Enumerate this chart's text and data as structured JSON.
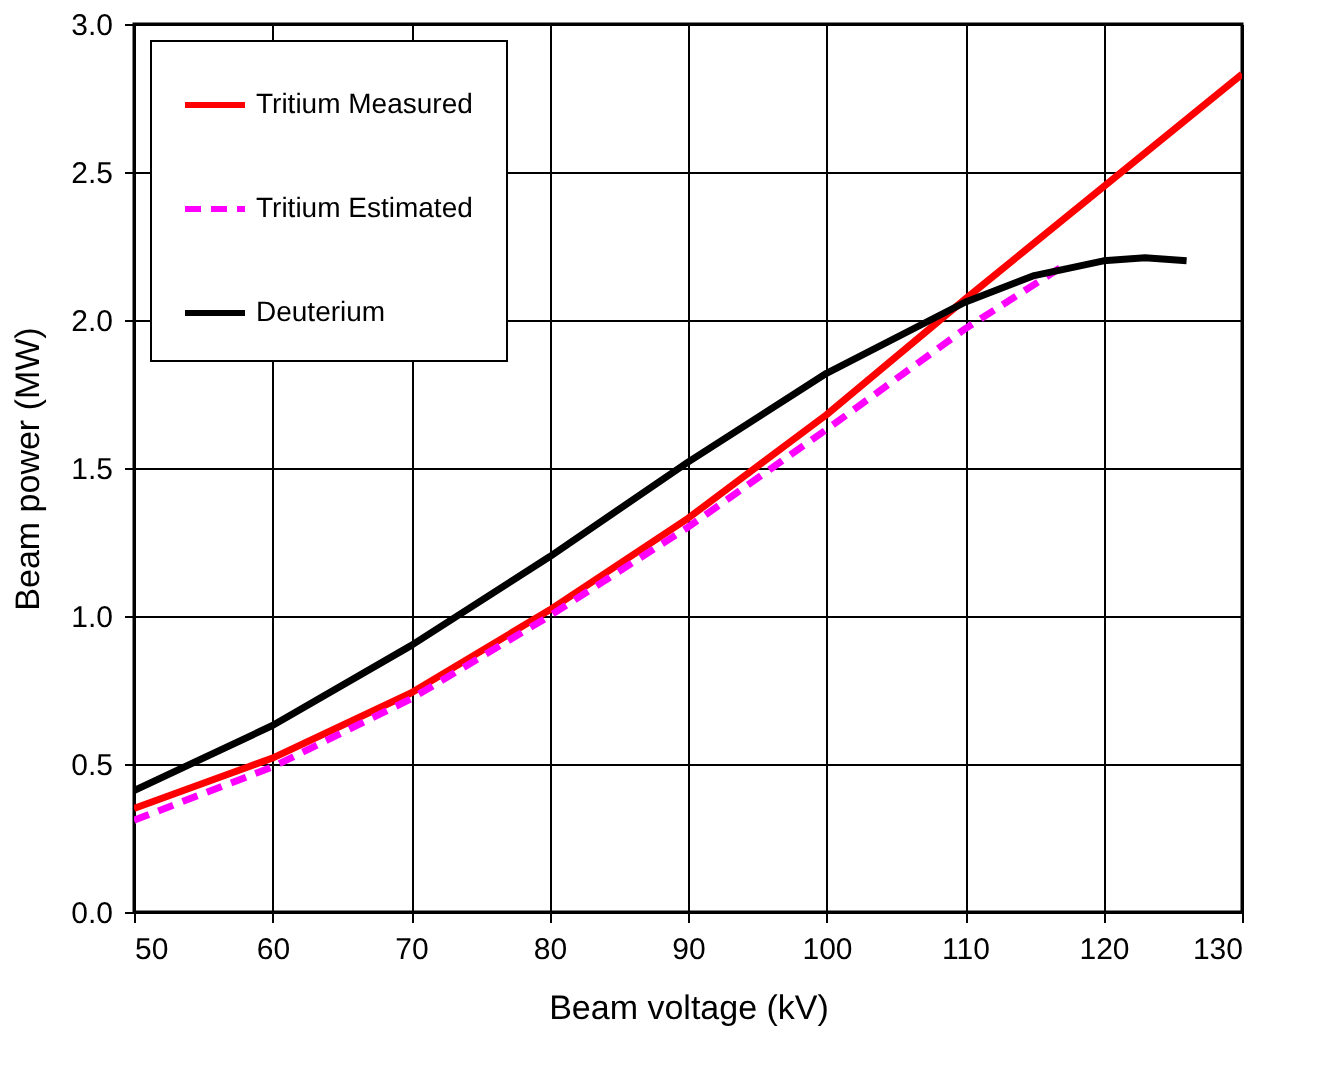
{
  "chart_data": {
    "type": "line",
    "xlabel": "Beam voltage (kV)",
    "ylabel": "Beam power (MW)",
    "xlim": [
      50,
      130
    ],
    "xticks": [
      50,
      60,
      70,
      80,
      90,
      100,
      110,
      120,
      130
    ],
    "ylim": [
      0,
      3
    ],
    "yticks": [
      {
        "value": 0,
        "label": "0.0"
      },
      0.5,
      {
        "value": 1,
        "label": "1.0"
      },
      1.5,
      {
        "value": 2,
        "label": "2.0"
      },
      2.5,
      {
        "value": 3,
        "label": "3.0"
      }
    ],
    "grid": true,
    "legend": "top left",
    "marker": "none",
    "series": [
      {
        "name": "Tritium Measured",
        "color": "#ff0000",
        "line_style": "solid",
        "x": [
          50,
          60,
          70,
          80,
          90,
          100,
          110,
          120,
          130
        ],
        "values": [
          0.35,
          0.52,
          0.74,
          1.02,
          1.33,
          1.68,
          2.07,
          2.45,
          2.83
        ]
      },
      {
        "name": "Tritium Estimated",
        "color": "#ff00ff",
        "line_style": "dashed",
        "x": [
          50,
          60,
          70,
          80,
          90,
          100,
          110,
          117
        ],
        "values": [
          0.31,
          0.49,
          0.72,
          1.0,
          1.3,
          1.63,
          1.97,
          2.18
        ]
      },
      {
        "name": "Deuterium",
        "color": "#000000",
        "line_style": "solid",
        "x": [
          50,
          60,
          70,
          80,
          90,
          100,
          110,
          115,
          120,
          123,
          126
        ],
        "values": [
          0.41,
          0.63,
          0.9,
          1.2,
          1.52,
          1.82,
          2.06,
          2.15,
          2.2,
          2.21,
          2.2
        ]
      }
    ]
  }
}
